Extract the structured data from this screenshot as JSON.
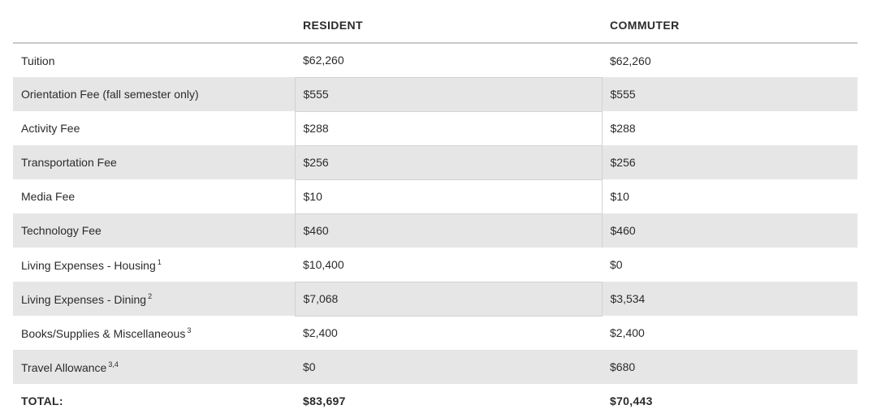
{
  "table": {
    "headers": [
      "",
      "RESIDENT",
      "COMMUTER"
    ],
    "rows": [
      {
        "label": "Tuition",
        "sup": "",
        "resident": "$62,260",
        "commuter": "$62,260"
      },
      {
        "label": "Orientation Fee (fall semester only)",
        "sup": "",
        "resident": "$555",
        "commuter": "$555"
      },
      {
        "label": "Activity Fee",
        "sup": "",
        "resident": "$288",
        "commuter": "$288"
      },
      {
        "label": "Transportation Fee",
        "sup": "",
        "resident": "$256",
        "commuter": "$256"
      },
      {
        "label": "Media Fee",
        "sup": "",
        "resident": "$10",
        "commuter": "$10"
      },
      {
        "label": "Technology Fee",
        "sup": "",
        "resident": "$460",
        "commuter": "$460"
      },
      {
        "label": "Living Expenses - Housing",
        "sup": "1",
        "resident": "$10,400",
        "commuter": "$0"
      },
      {
        "label": "Living Expenses - Dining",
        "sup": "2",
        "resident": "$7,068",
        "commuter": "$3,534"
      },
      {
        "label": "Books/Supplies & Miscellaneous",
        "sup": "3",
        "resident": "$2,400",
        "commuter": "$2,400"
      },
      {
        "label": "Travel Allowance",
        "sup": "3,4",
        "resident": "$0",
        "commuter": "$680"
      }
    ],
    "total": {
      "label": "TOTAL:",
      "resident": "$83,697",
      "commuter": "$70,443"
    }
  },
  "colors": {
    "row_alt_background": "#e6e6e6",
    "text": "#2b2b2b",
    "header_rule": "#c9c9c9"
  }
}
